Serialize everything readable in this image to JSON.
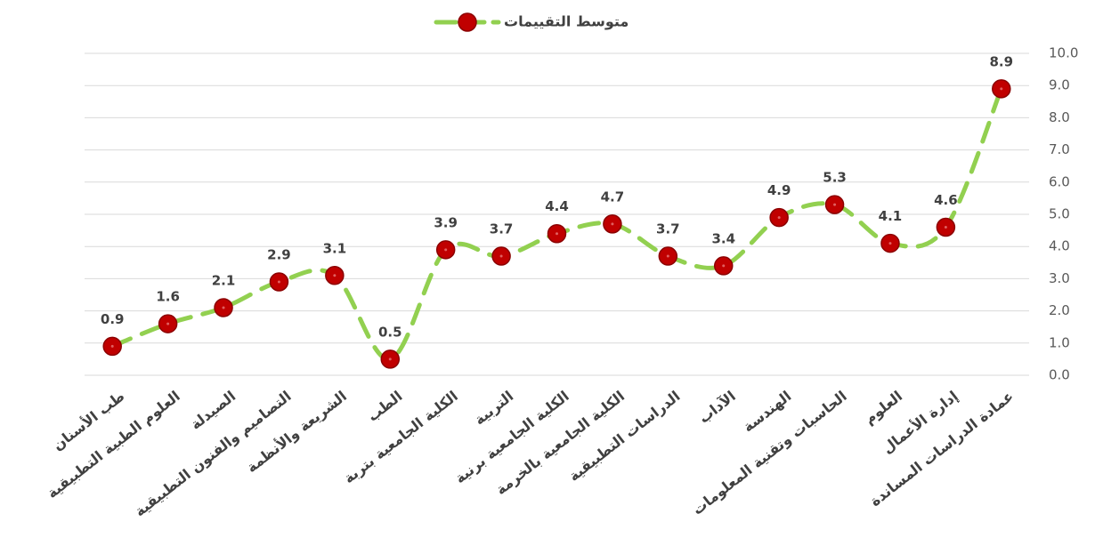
{
  "chart_data": {
    "type": "line",
    "categories": [
      "طب الأسنان",
      "العلوم الطبية التطبيقية",
      "الصيدلة",
      "التصاميم والفنون التطبيقية",
      "الشريعة والأنظمة",
      "الطب",
      "الكلية الجامعية بتربة",
      "التربية",
      "الكلية الجامعية برنية",
      "الكلية الجامعية بالخرمة",
      "الدراسات التطبيقية",
      "الآداب",
      "الهندسة",
      "الحاسبات وتقنية المعلومات",
      "العلوم",
      "إدارة الأعمال",
      "عمادة الدراسات المساندة"
    ],
    "series": [
      {
        "name": "متوسط التقييمات",
        "color": "#92d050",
        "marker_color": "#c00000",
        "values": [
          0.9,
          1.6,
          2.1,
          2.9,
          3.1,
          0.5,
          3.9,
          3.7,
          4.4,
          4.7,
          3.7,
          3.4,
          4.9,
          5.3,
          4.1,
          4.6,
          8.9
        ]
      }
    ],
    "ylim": [
      0,
      10
    ],
    "yticks": [
      {
        "value": 0,
        "label": "0.0"
      },
      {
        "value": 1,
        "label": "1.0"
      },
      {
        "value": 2,
        "label": "2.0"
      },
      {
        "value": 3,
        "label": "3.0"
      },
      {
        "value": 4,
        "label": "4.0"
      },
      {
        "value": 5,
        "label": "5.0"
      },
      {
        "value": 6,
        "label": "6.0"
      },
      {
        "value": 7,
        "label": "7.0"
      },
      {
        "value": 8,
        "label": "8.0"
      },
      {
        "value": 9,
        "label": "9.0"
      },
      {
        "value": 10,
        "label": "10.0"
      }
    ],
    "grid": true,
    "legend": "top"
  }
}
